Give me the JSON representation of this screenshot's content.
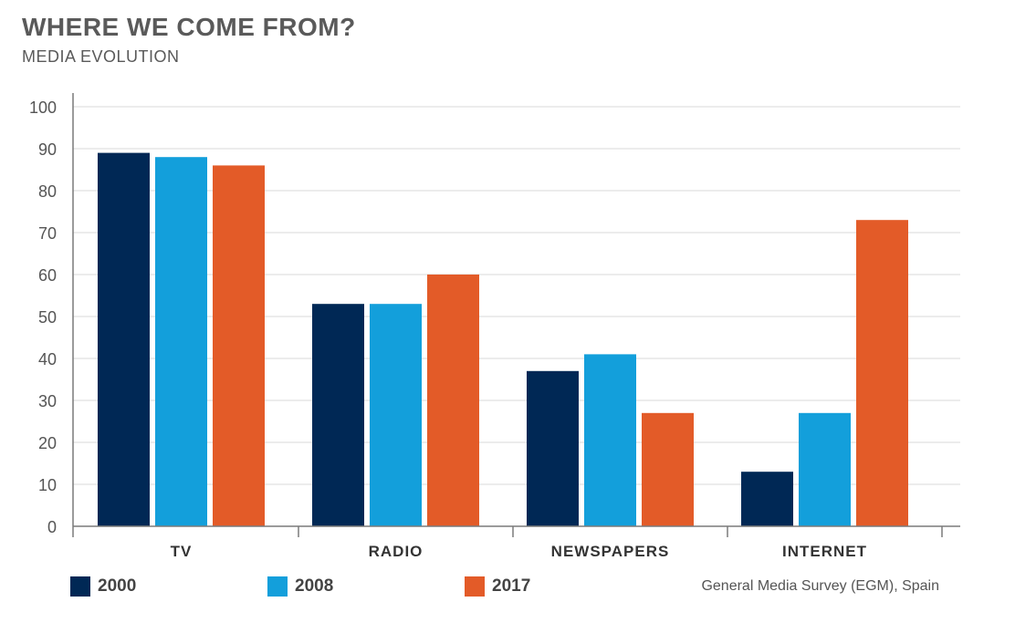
{
  "header": {
    "title": "WHERE WE COME FROM?",
    "subtitle": "MEDIA EVOLUTION"
  },
  "source": "General Media Survey (EGM), Spain",
  "colors": {
    "2000": "#002855",
    "2008": "#139fdb",
    "2017": "#e35b28",
    "grid": "#d9d9d9",
    "axis": "#7a7a7a"
  },
  "chart_data": {
    "type": "bar",
    "categories": [
      "TV",
      "RADIO",
      "NEWSPAPERS",
      "INTERNET"
    ],
    "series": [
      {
        "name": "2000",
        "values": [
          89,
          53,
          37,
          13
        ]
      },
      {
        "name": "2008",
        "values": [
          88,
          53,
          41,
          27
        ]
      },
      {
        "name": "2017",
        "values": [
          86,
          60,
          27,
          73
        ]
      }
    ],
    "yticks": [
      "0",
      "10",
      "20",
      "30",
      "40",
      "50",
      "60",
      "70",
      "80",
      "90",
      "100"
    ],
    "ylim": [
      0,
      100
    ],
    "grid": true,
    "legend": "bottom-left"
  }
}
